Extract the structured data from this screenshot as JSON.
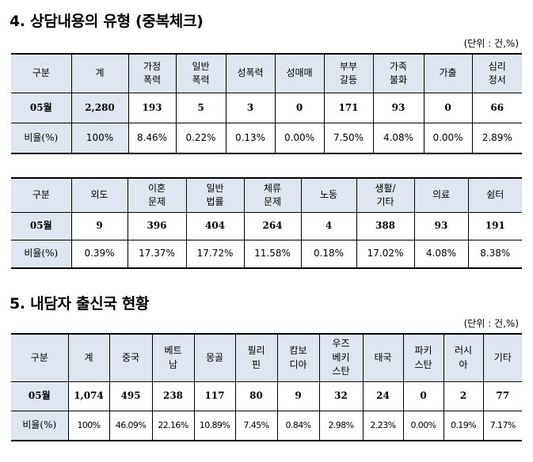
{
  "section4": {
    "title": "4. 상담내용의 유형 (중복체크)",
    "unit": "(단위 : 건,%)",
    "table1": {
      "headers": [
        [
          "구분"
        ],
        [
          "계"
        ],
        [
          "가정",
          "폭력"
        ],
        [
          "일반",
          "폭력"
        ],
        [
          "성폭력"
        ],
        [
          "성매매"
        ],
        [
          "부부",
          "갈등"
        ],
        [
          "가족",
          "불화"
        ],
        [
          "가출"
        ],
        [
          "심리",
          "정서"
        ]
      ],
      "count_label": "05월",
      "counts": [
        "2,280",
        "193",
        "5",
        "3",
        "0",
        "171",
        "93",
        "0",
        "66"
      ],
      "ratio_label": "비율(%)",
      "ratios": [
        "100%",
        "8.46%",
        "0.22%",
        "0.13%",
        "0.00%",
        "7.50%",
        "4.08%",
        "0.00%",
        "2.89%"
      ]
    },
    "table2": {
      "headers": [
        [
          "구분"
        ],
        [
          "외도"
        ],
        [
          "이혼",
          "문제"
        ],
        [
          "일반",
          "법률"
        ],
        [
          "체류",
          "문제"
        ],
        [
          "노동"
        ],
        [
          "생활/",
          "기타"
        ],
        [
          "의료"
        ],
        [
          "쉼터"
        ]
      ],
      "count_label": "05월",
      "counts": [
        "9",
        "396",
        "404",
        "264",
        "4",
        "388",
        "93",
        "191"
      ],
      "ratio_label": "비율(%)",
      "ratios": [
        "0.39%",
        "17.37%",
        "17.72%",
        "11.58%",
        "0.18%",
        "17.02%",
        "4.08%",
        "8.38%"
      ]
    }
  },
  "section5": {
    "title": "5. 내담자 출신국 현황",
    "unit": "(단위 : 건,%)",
    "table3": {
      "headers": [
        [
          "구분"
        ],
        [
          "계"
        ],
        [
          "중국"
        ],
        [
          "베트",
          "남"
        ],
        [
          "몽골"
        ],
        [
          "필리",
          "핀"
        ],
        [
          "캄보",
          "디아"
        ],
        [
          "우즈",
          "베키",
          "스탄"
        ],
        [
          "태국"
        ],
        [
          "파키",
          "스탄"
        ],
        [
          "러시",
          "아"
        ],
        [
          "기타"
        ]
      ],
      "count_label": "05월",
      "counts": [
        "1,074",
        "495",
        "238",
        "117",
        "80",
        "9",
        "32",
        "24",
        "0",
        "2",
        "77"
      ],
      "ratio_label": "비율(%)",
      "ratios": [
        "100%",
        "46.09%",
        "22.16%",
        "10.89%",
        "7.45%",
        "0.84%",
        "2.98%",
        "2.23%",
        "0.00%",
        "0.19%",
        "7.17%"
      ]
    }
  }
}
